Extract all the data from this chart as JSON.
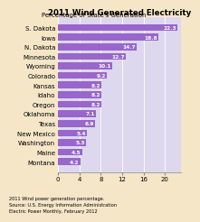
{
  "title": "2011 Wind Generated Electricity",
  "subtitle": "Percentage of State's Generation",
  "states": [
    "Montana",
    "Maine",
    "Washington",
    "New Mexico",
    "Texas",
    "Oklahoma",
    "Oregon",
    "Idaho",
    "Kansas",
    "Colorado",
    "Wyoming",
    "Minnesota",
    "N. Dakota",
    "Iowa",
    "S. Dakota"
  ],
  "values": [
    4.2,
    4.5,
    5.3,
    5.4,
    6.9,
    7.1,
    8.2,
    8.2,
    8.2,
    9.2,
    10.1,
    12.7,
    14.7,
    18.8,
    22.3
  ],
  "bar_color": "#9966cc",
  "background_color": "#f5e6c8",
  "plot_bg_color": "#ddd8ee",
  "text_color": "#000000",
  "label_color": "#ffffff",
  "footer": "2011 Wind power generation percentage.\nSource: U.S. Energy Information Administration\nElectric Power Monthly, February 2012",
  "xlim": [
    0,
    23
  ],
  "xticks": [
    0,
    4,
    8,
    12,
    16,
    20
  ],
  "title_fontsize": 6.2,
  "subtitle_fontsize": 5.0,
  "ytick_fontsize": 5.0,
  "xtick_fontsize": 5.0,
  "bar_label_fontsize": 4.2,
  "footer_fontsize": 3.6
}
